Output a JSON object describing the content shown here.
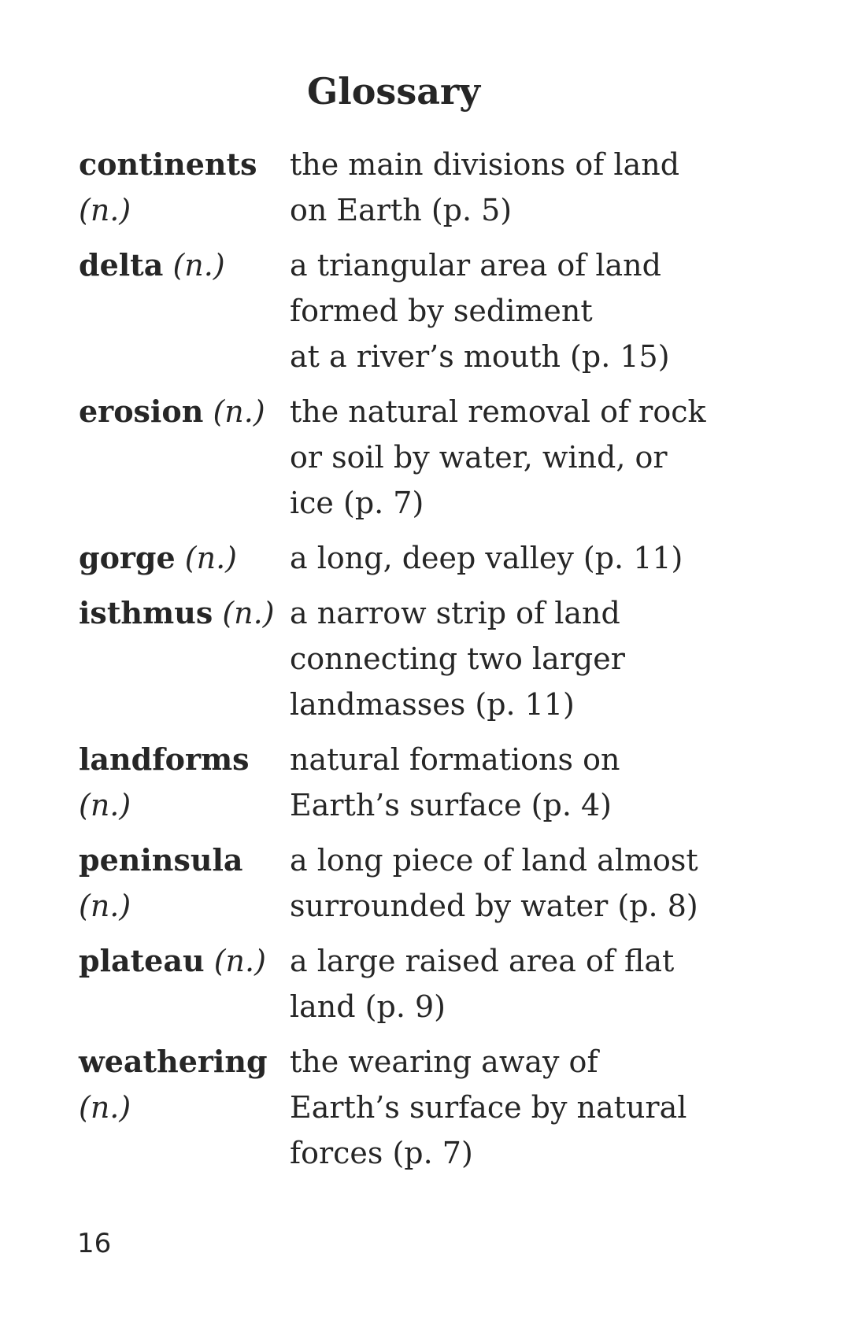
{
  "title": "Glossary",
  "entries": [
    {
      "term": "continents",
      "pos": "(n.)",
      "definition": [
        "the main divisions of land",
        "on Earth (p. 5)"
      ]
    },
    {
      "term": "delta",
      "pos": "(n.)",
      "definition": [
        "a triangular area of land",
        "formed by sediment",
        "at a river’s mouth (p. 15)"
      ]
    },
    {
      "term": "erosion",
      "pos": "(n.)",
      "definition": [
        "the natural removal of rock",
        "or soil by water, wind, or",
        "ice (p. 7)"
      ]
    },
    {
      "term": "gorge",
      "pos": "(n.)",
      "definition": [
        "a long, deep valley (p. 11)"
      ]
    },
    {
      "term": "isthmus",
      "pos": "(n.)",
      "definition": [
        "a narrow strip of land",
        "connecting two larger",
        "landmasses (p. 11)"
      ]
    },
    {
      "term": "landforms",
      "pos": "(n.)",
      "definition": [
        "natural formations on",
        "Earth’s surface (p. 4)"
      ]
    },
    {
      "term": "peninsula",
      "pos": "(n.)",
      "definition": [
        "a long piece of land almost",
        "surrounded by water (p. 8)"
      ]
    },
    {
      "term": "plateau",
      "pos": "(n.)",
      "definition": [
        "a large raised area of flat",
        "land (p. 9)"
      ]
    },
    {
      "term": "weathering",
      "pos": "(n.)",
      "definition": [
        "the wearing away of",
        "Earth’s surface by natural",
        "forces  (p. 7)"
      ]
    }
  ],
  "page_number": "16"
}
